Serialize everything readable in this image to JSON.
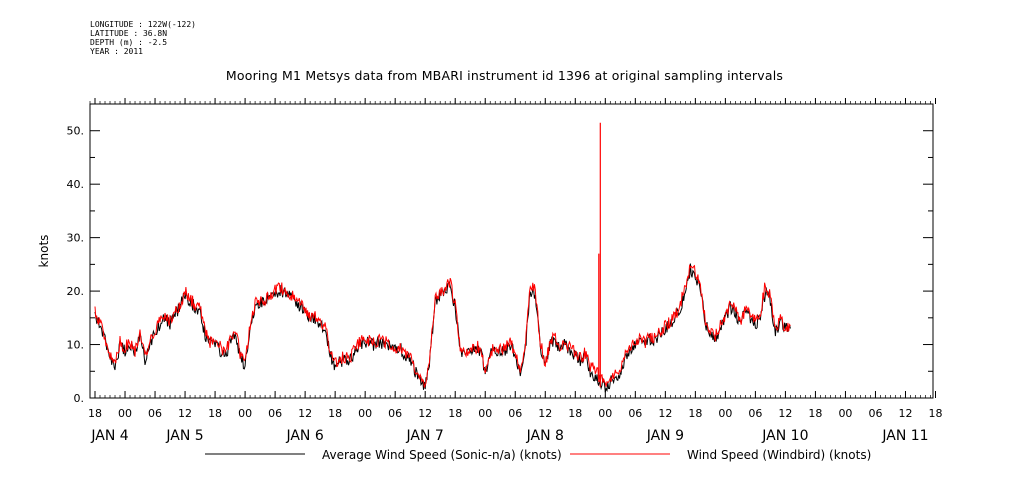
{
  "meta": {
    "longitude": "LONGITUDE : 122W(-122)",
    "latitude": "LATITUDE : 36.8N",
    "depth": "DEPTH (m) : -2.5",
    "year": "YEAR : 2011"
  },
  "chart_data": {
    "type": "line",
    "title": "Mooring M1 Metsys data from MBARI instrument id 1396 at original sampling intervals",
    "ylabel": "knots",
    "xlabel": "",
    "ylim": [
      0,
      55
    ],
    "yticks": [
      0,
      10,
      20,
      30,
      40,
      50
    ],
    "ytick_labels": [
      "0.",
      "10.",
      "20.",
      "30.",
      "40.",
      "50."
    ],
    "xlim_hours": [
      -7,
      161.5
    ],
    "hour_ticks": [
      {
        "t": -6,
        "label": "18"
      },
      {
        "t": 0,
        "label": "00"
      },
      {
        "t": 6,
        "label": "06"
      },
      {
        "t": 12,
        "label": "12"
      },
      {
        "t": 18,
        "label": "18"
      },
      {
        "t": 24,
        "label": "00"
      },
      {
        "t": 30,
        "label": "06"
      },
      {
        "t": 36,
        "label": "12"
      },
      {
        "t": 42,
        "label": "18"
      },
      {
        "t": 48,
        "label": "00"
      },
      {
        "t": 54,
        "label": "06"
      },
      {
        "t": 60,
        "label": "12"
      },
      {
        "t": 66,
        "label": "18"
      },
      {
        "t": 72,
        "label": "00"
      },
      {
        "t": 78,
        "label": "06"
      },
      {
        "t": 84,
        "label": "12"
      },
      {
        "t": 90,
        "label": "18"
      },
      {
        "t": 96,
        "label": "00"
      },
      {
        "t": 102,
        "label": "06"
      },
      {
        "t": 108,
        "label": "12"
      },
      {
        "t": 114,
        "label": "18"
      },
      {
        "t": 120,
        "label": "00"
      },
      {
        "t": 126,
        "label": "06"
      },
      {
        "t": 132,
        "label": "12"
      },
      {
        "t": 138,
        "label": "18"
      },
      {
        "t": 144,
        "label": "00"
      },
      {
        "t": 150,
        "label": "06"
      },
      {
        "t": 156,
        "label": "12"
      },
      {
        "t": 162,
        "label": "18"
      }
    ],
    "day_labels": [
      {
        "t": -3,
        "label": "JAN  4"
      },
      {
        "t": 12,
        "label": "JAN  5"
      },
      {
        "t": 36,
        "label": "JAN  6"
      },
      {
        "t": 60,
        "label": "JAN  7"
      },
      {
        "t": 84,
        "label": "JAN  8"
      },
      {
        "t": 108,
        "label": "JAN  9"
      },
      {
        "t": 132,
        "label": "JAN 10"
      },
      {
        "t": 156,
        "label": "JAN 11"
      }
    ],
    "series": [
      {
        "name": "Average Wind Speed (Sonic-n/a) (knots)",
        "color": "#000000",
        "points": [
          [
            -6,
            16
          ],
          [
            -5,
            13.5
          ],
          [
            -4,
            11
          ],
          [
            -3,
            7.5
          ],
          [
            -2,
            6
          ],
          [
            -1,
            10
          ],
          [
            0,
            9
          ],
          [
            1,
            10
          ],
          [
            2,
            8
          ],
          [
            3,
            12
          ],
          [
            4,
            7
          ],
          [
            5,
            10
          ],
          [
            6,
            12
          ],
          [
            7,
            14
          ],
          [
            8,
            15
          ],
          [
            9,
            14
          ],
          [
            10,
            15.5
          ],
          [
            11,
            17
          ],
          [
            12,
            19.5
          ],
          [
            13,
            18
          ],
          [
            14,
            17
          ],
          [
            15,
            16
          ],
          [
            16,
            12
          ],
          [
            17,
            10
          ],
          [
            18,
            10
          ],
          [
            19,
            9
          ],
          [
            20,
            8
          ],
          [
            21,
            10
          ],
          [
            22,
            12
          ],
          [
            23,
            8
          ],
          [
            24,
            6
          ],
          [
            25,
            13
          ],
          [
            26,
            17
          ],
          [
            27,
            18
          ],
          [
            28,
            18
          ],
          [
            29,
            19
          ],
          [
            30,
            19.5
          ],
          [
            31,
            20
          ],
          [
            32,
            20
          ],
          [
            33,
            19
          ],
          [
            34,
            18
          ],
          [
            35,
            17
          ],
          [
            36,
            16
          ],
          [
            37,
            15
          ],
          [
            38,
            15
          ],
          [
            39,
            14
          ],
          [
            40,
            13
          ],
          [
            41,
            8
          ],
          [
            42,
            6
          ],
          [
            43,
            7
          ],
          [
            44,
            7
          ],
          [
            45,
            7
          ],
          [
            46,
            9
          ],
          [
            47,
            10
          ],
          [
            48,
            10.5
          ],
          [
            49,
            10
          ],
          [
            50,
            10
          ],
          [
            51,
            10.5
          ],
          [
            52,
            10
          ],
          [
            53,
            9.5
          ],
          [
            54,
            9
          ],
          [
            55,
            9
          ],
          [
            56,
            8
          ],
          [
            57,
            7
          ],
          [
            58,
            5
          ],
          [
            59,
            3
          ],
          [
            60,
            2
          ],
          [
            61,
            8
          ],
          [
            62,
            18
          ],
          [
            63,
            19
          ],
          [
            64,
            20
          ],
          [
            65,
            21
          ],
          [
            66,
            17
          ],
          [
            67,
            9
          ],
          [
            68,
            8
          ],
          [
            69,
            8.5
          ],
          [
            70,
            9
          ],
          [
            71,
            9
          ],
          [
            72,
            5
          ],
          [
            73,
            8
          ],
          [
            74,
            9
          ],
          [
            75,
            8.5
          ],
          [
            76,
            9
          ],
          [
            77,
            10
          ],
          [
            78,
            8
          ],
          [
            79,
            4
          ],
          [
            80,
            9
          ],
          [
            81,
            20
          ],
          [
            82,
            19
          ],
          [
            83,
            10
          ],
          [
            84,
            6
          ],
          [
            85,
            10
          ],
          [
            86,
            11
          ],
          [
            87,
            9
          ],
          [
            88,
            10
          ],
          [
            89,
            9
          ],
          [
            90,
            8
          ],
          [
            91,
            7
          ],
          [
            92,
            8
          ],
          [
            93,
            5
          ],
          [
            94,
            3.5
          ],
          [
            95,
            3
          ],
          [
            96,
            2
          ],
          [
            97,
            3
          ],
          [
            98,
            4
          ],
          [
            99,
            5
          ],
          [
            100,
            7
          ],
          [
            101,
            9
          ],
          [
            102,
            10
          ],
          [
            103,
            11
          ],
          [
            104,
            10
          ],
          [
            105,
            11
          ],
          [
            106,
            11
          ],
          [
            107,
            12
          ],
          [
            108,
            13
          ],
          [
            109,
            14
          ],
          [
            110,
            15
          ],
          [
            111,
            17
          ],
          [
            112,
            20
          ],
          [
            113,
            24
          ],
          [
            114,
            23
          ],
          [
            115,
            20
          ],
          [
            116,
            14
          ],
          [
            117,
            12
          ],
          [
            118,
            11
          ],
          [
            119,
            13
          ],
          [
            120,
            15
          ],
          [
            121,
            17
          ],
          [
            122,
            16
          ],
          [
            123,
            14
          ],
          [
            124,
            16
          ],
          [
            125,
            15
          ],
          [
            126,
            14
          ],
          [
            127,
            15
          ],
          [
            128,
            20
          ],
          [
            129,
            18
          ],
          [
            130,
            12
          ],
          [
            131,
            14
          ],
          [
            132,
            13
          ],
          [
            133,
            13
          ]
        ]
      },
      {
        "name": "Wind Speed (Windbird) (knots)",
        "color": "#ff0000",
        "points": [
          [
            -6,
            16.5
          ],
          [
            -5,
            14
          ],
          [
            -4,
            11.5
          ],
          [
            -3,
            8
          ],
          [
            -2,
            6.5
          ],
          [
            -1,
            10.5
          ],
          [
            0,
            9.5
          ],
          [
            1,
            10.5
          ],
          [
            2,
            8.5
          ],
          [
            3,
            12.5
          ],
          [
            4,
            7.5
          ],
          [
            5,
            10.5
          ],
          [
            6,
            12.5
          ],
          [
            7,
            14.5
          ],
          [
            8,
            15.5
          ],
          [
            9,
            14.5
          ],
          [
            10,
            16
          ],
          [
            11,
            17.5
          ],
          [
            12,
            20
          ],
          [
            13,
            18.5
          ],
          [
            14,
            17.5
          ],
          [
            15,
            16.5
          ],
          [
            16,
            12.5
          ],
          [
            17,
            10.5
          ],
          [
            18,
            10.5
          ],
          [
            19,
            9.5
          ],
          [
            20,
            8.5
          ],
          [
            21,
            10.5
          ],
          [
            22,
            12.5
          ],
          [
            23,
            8.5
          ],
          [
            24,
            6.5
          ],
          [
            25,
            13.5
          ],
          [
            26,
            17.5
          ],
          [
            27,
            18.5
          ],
          [
            28,
            18.5
          ],
          [
            29,
            19.5
          ],
          [
            30,
            20
          ],
          [
            31,
            20.5
          ],
          [
            32,
            20.5
          ],
          [
            33,
            19.5
          ],
          [
            34,
            18.5
          ],
          [
            35,
            17.5
          ],
          [
            36,
            16.5
          ],
          [
            37,
            15.5
          ],
          [
            38,
            15.5
          ],
          [
            39,
            14.5
          ],
          [
            40,
            13.5
          ],
          [
            41,
            8.5
          ],
          [
            42,
            6.5
          ],
          [
            43,
            7.5
          ],
          [
            44,
            7.5
          ],
          [
            45,
            7.5
          ],
          [
            46,
            9.5
          ],
          [
            47,
            10.5
          ],
          [
            48,
            11
          ],
          [
            49,
            10.5
          ],
          [
            50,
            10.5
          ],
          [
            51,
            11
          ],
          [
            52,
            10.5
          ],
          [
            53,
            10
          ],
          [
            54,
            9.5
          ],
          [
            55,
            9.5
          ],
          [
            56,
            8.5
          ],
          [
            57,
            7.5
          ],
          [
            58,
            5.5
          ],
          [
            59,
            3.5
          ],
          [
            60,
            2.5
          ],
          [
            61,
            8.5
          ],
          [
            62,
            18.5
          ],
          [
            63,
            19.5
          ],
          [
            64,
            20.5
          ],
          [
            65,
            22
          ],
          [
            66,
            17.5
          ],
          [
            67,
            9.5
          ],
          [
            68,
            8.5
          ],
          [
            69,
            9
          ],
          [
            70,
            9.5
          ],
          [
            71,
            9.5
          ],
          [
            72,
            5.5
          ],
          [
            73,
            8.5
          ],
          [
            74,
            9.5
          ],
          [
            75,
            9
          ],
          [
            76,
            9.5
          ],
          [
            77,
            10.5
          ],
          [
            78,
            8.5
          ],
          [
            79,
            5
          ],
          [
            80,
            10
          ],
          [
            81,
            21
          ],
          [
            82,
            20
          ],
          [
            83,
            10.5
          ],
          [
            84,
            6.5
          ],
          [
            85,
            10.5
          ],
          [
            86,
            11.5
          ],
          [
            87,
            9.5
          ],
          [
            88,
            10.5
          ],
          [
            89,
            9.5
          ],
          [
            90,
            8.5
          ],
          [
            91,
            7.5
          ],
          [
            92,
            8.5
          ],
          [
            93,
            6
          ],
          [
            94,
            5
          ],
          [
            95,
            4
          ],
          [
            96,
            3
          ],
          [
            97,
            4
          ],
          [
            98,
            5
          ],
          [
            99,
            6
          ],
          [
            100,
            8
          ],
          [
            101,
            10
          ],
          [
            102,
            10.5
          ],
          [
            103,
            11.5
          ],
          [
            104,
            10.5
          ],
          [
            105,
            11.5
          ],
          [
            106,
            11.5
          ],
          [
            107,
            12.5
          ],
          [
            108,
            13.5
          ],
          [
            109,
            14.5
          ],
          [
            110,
            15.5
          ],
          [
            111,
            17.5
          ],
          [
            112,
            21
          ],
          [
            113,
            24.5
          ],
          [
            114,
            23.5
          ],
          [
            115,
            21
          ],
          [
            116,
            14.5
          ],
          [
            117,
            12.5
          ],
          [
            118,
            11.5
          ],
          [
            119,
            13.5
          ],
          [
            120,
            15.5
          ],
          [
            121,
            17.5
          ],
          [
            122,
            16.5
          ],
          [
            123,
            14.5
          ],
          [
            124,
            16.5
          ],
          [
            125,
            15.5
          ],
          [
            126,
            14.5
          ],
          [
            127,
            15.5
          ],
          [
            128,
            21.5
          ],
          [
            129,
            19
          ],
          [
            130,
            12.5
          ],
          [
            131,
            14.5
          ],
          [
            132,
            13.5
          ],
          [
            133,
            13.5
          ]
        ],
        "spike": {
          "t": 95,
          "values": [
            27,
            51.5
          ]
        }
      }
    ]
  }
}
